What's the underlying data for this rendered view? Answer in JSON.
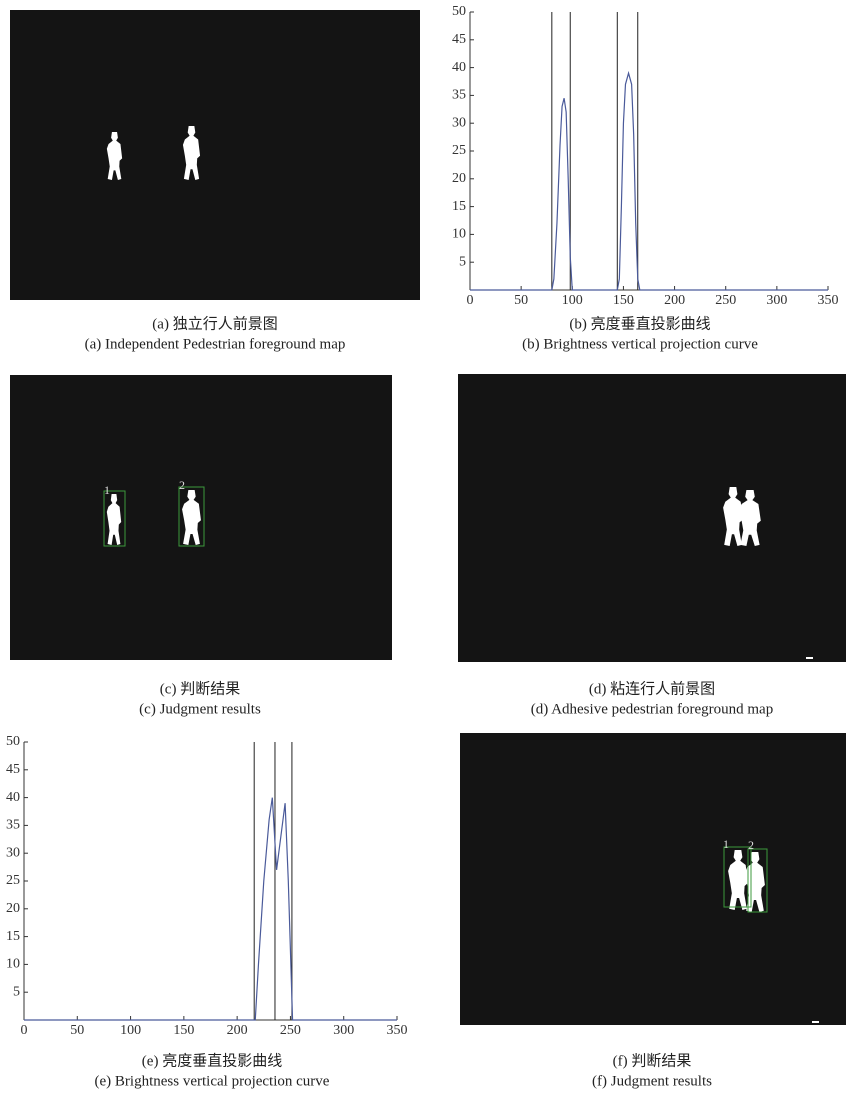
{
  "panels": [
    {
      "caption_zh": "(a) 独立行人前景图",
      "caption_en": "(a) Independent Pedestrian foreground map"
    },
    {
      "caption_zh": "(b) 亮度垂直投影曲线",
      "caption_en": "(b) Brightness vertical projection curve"
    },
    {
      "caption_zh": "(c) 判断结果",
      "caption_en": "(c) Judgment results",
      "box_labels": [
        "1",
        "2"
      ]
    },
    {
      "caption_zh": "(d) 粘连行人前景图",
      "caption_en": "(d) Adhesive pedestrian foreground map"
    },
    {
      "caption_zh": "(e) 亮度垂直投影曲线",
      "caption_en": "(e) Brightness vertical projection curve"
    },
    {
      "caption_zh": "(f) 判断结果",
      "caption_en": "(f) Judgment results",
      "box_labels": [
        "1",
        "2"
      ]
    }
  ],
  "chart_data": [
    {
      "type": "line",
      "xlim": [
        0,
        350
      ],
      "xticks": [
        0,
        50,
        100,
        150,
        200,
        250,
        300,
        350
      ],
      "ylim": [
        0,
        50
      ],
      "yticks": [
        5,
        10,
        15,
        20,
        25,
        30,
        35,
        40,
        45,
        50
      ],
      "x": [
        0,
        80,
        82,
        85,
        88,
        90,
        92,
        94,
        96,
        98,
        100,
        144,
        146,
        148,
        150,
        152,
        155,
        158,
        160,
        162,
        164,
        166,
        350
      ],
      "series": [
        {
          "color": "#4a5a9a",
          "values": [
            0,
            0,
            2,
            12,
            26,
            33,
            34.5,
            32,
            20,
            6,
            0,
            0,
            2,
            15,
            30,
            37,
            39,
            37,
            28,
            12,
            2,
            0,
            0
          ]
        }
      ],
      "vlines": [
        80,
        98,
        144,
        164
      ],
      "vline_color": "#222"
    },
    {
      "type": "line",
      "xlim": [
        0,
        350
      ],
      "xticks": [
        0,
        50,
        100,
        150,
        200,
        250,
        300,
        350
      ],
      "ylim": [
        0,
        50
      ],
      "yticks": [
        5,
        10,
        15,
        20,
        25,
        30,
        35,
        40,
        45,
        50
      ],
      "x": [
        0,
        217,
        220,
        225,
        230,
        233,
        237,
        241,
        245,
        248,
        252,
        350
      ],
      "series": [
        {
          "color": "#4a5a9a",
          "values": [
            0,
            0,
            10,
            25,
            36,
            40,
            27,
            33,
            39,
            25,
            0,
            0
          ]
        }
      ],
      "vlines": [
        216,
        235.5,
        251.4
      ],
      "vline_color": "#222"
    }
  ]
}
